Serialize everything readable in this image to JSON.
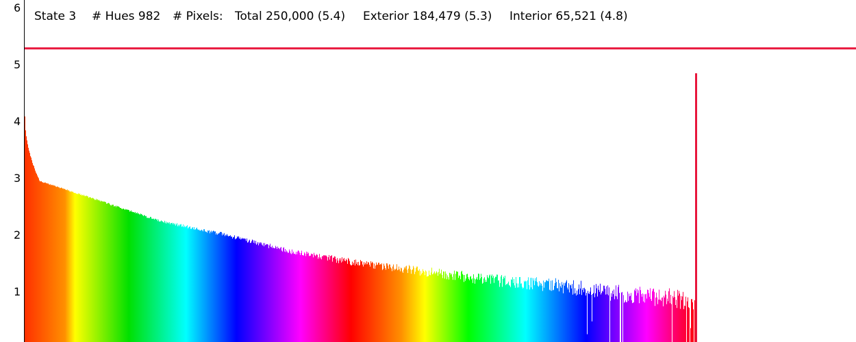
{
  "header": {
    "state": "State 3",
    "hues": "# Hues 982",
    "pixels_label": "# Pixels:",
    "total": "Total 250,000 (5.4)",
    "exterior": "Exterior 184,479 (5.3)",
    "interior": "Interior 65,521 (4.8)"
  },
  "colors": {
    "reference_line": "#e8163c",
    "axis": "#000000",
    "background": "#ffffff"
  },
  "chart_data": {
    "type": "bar",
    "title": "",
    "xlabel": "",
    "ylabel": "",
    "y_scale": "log10 of pixel count",
    "ylim": [
      0.15,
      6
    ],
    "yticks": [
      "1",
      "2",
      "3",
      "4",
      "5",
      "6"
    ],
    "x_gradient": "hue spectrum red → orange → yellow → green → cyan → blue → magenta → red → yellow → green → cyan → blue → magenta → red",
    "bar_count": 982,
    "bar_profile_y": {
      "first_bar": 4.2,
      "steep_drop_to": 3.05,
      "at_10_percent": 2.75,
      "at_20_percent": 2.35,
      "at_30_percent": 2.1,
      "at_40_percent": 1.8,
      "at_50_percent": 1.6,
      "at_60_percent": 1.45,
      "at_70_percent": 1.3,
      "at_80_percent": 1.2,
      "at_90_percent": 1.05,
      "last_bar": 0.95
    },
    "noise_amplitude_tail": 0.35,
    "spike": {
      "position": "last bar",
      "value": 4.95
    },
    "reference_line": {
      "value": 5.4,
      "label": "Total (5.4)"
    }
  }
}
